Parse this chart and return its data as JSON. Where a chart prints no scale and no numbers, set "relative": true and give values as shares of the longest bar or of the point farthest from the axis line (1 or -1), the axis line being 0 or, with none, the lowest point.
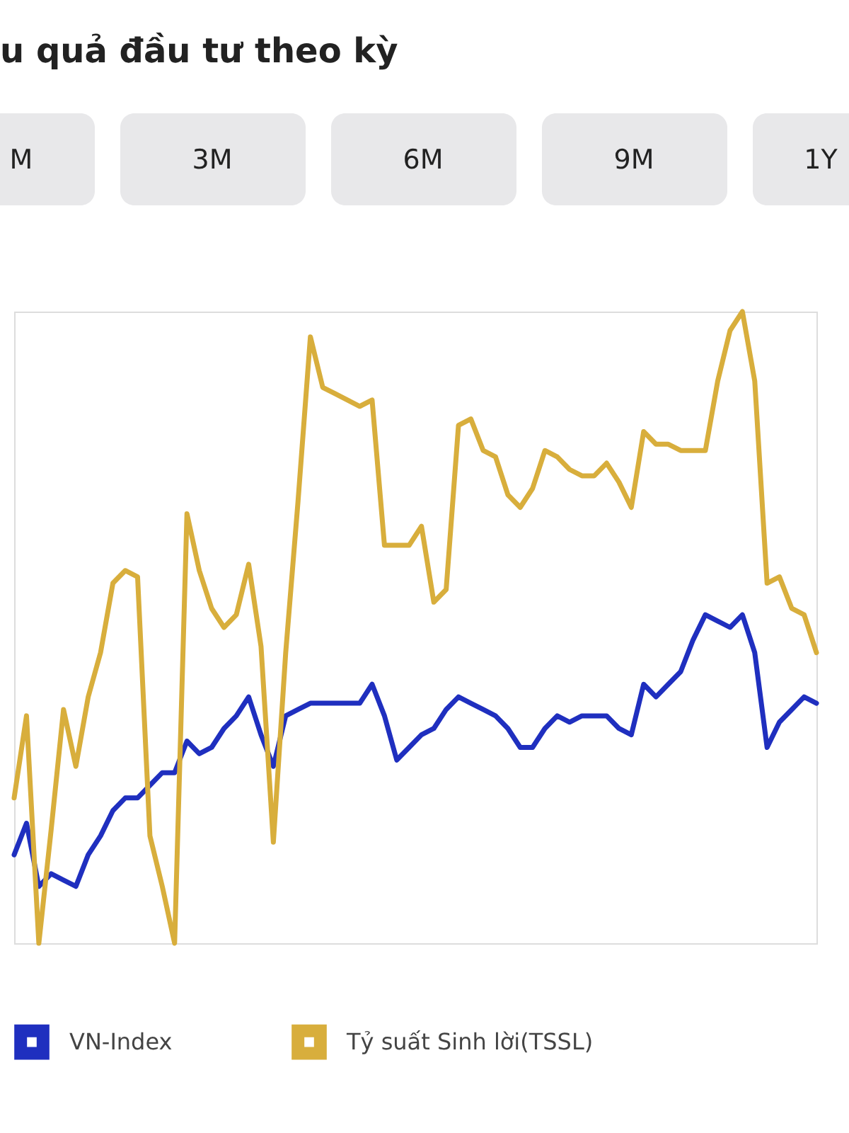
{
  "chart_data": {
    "type": "line",
    "title": "u quả đầu tư theo kỳ",
    "annotations": [
      "M",
      "3M",
      "6M",
      "9M",
      "1Y"
    ],
    "relative": true,
    "legend": "bottom",
    "marker": "none",
    "line_style": "solid",
    "categories": [
      null,
      null,
      null,
      null,
      null,
      null,
      null,
      null,
      null,
      null,
      null,
      null,
      null,
      null,
      null,
      null,
      null,
      null,
      null,
      null,
      null,
      null,
      null,
      null,
      null,
      null,
      null,
      null,
      null,
      null,
      null,
      null,
      null,
      null,
      null,
      null,
      null,
      null,
      null,
      null,
      null,
      null,
      null,
      null,
      null,
      null,
      null,
      null,
      null,
      null,
      null,
      null,
      null,
      null,
      null,
      null,
      null,
      null,
      null,
      null,
      null,
      null,
      null,
      null,
      null,
      null
    ],
    "series": [
      {
        "name": "VN-Index",
        "color": "#1f2fbf",
        "values": [
          0.14,
          0.19,
          0.09,
          0.11,
          0.1,
          0.09,
          0.14,
          0.17,
          0.21,
          0.23,
          0.23,
          0.25,
          0.27,
          0.27,
          0.32,
          0.3,
          0.31,
          0.34,
          0.36,
          0.39,
          0.33,
          0.28,
          0.36,
          0.37,
          0.38,
          0.38,
          0.38,
          0.38,
          0.38,
          0.41,
          0.36,
          0.29,
          0.31,
          0.33,
          0.34,
          0.37,
          0.39,
          0.38,
          0.37,
          0.36,
          0.34,
          0.31,
          0.31,
          0.34,
          0.36,
          0.35,
          0.36,
          0.36,
          0.36,
          0.34,
          0.33,
          0.41,
          0.39,
          0.41,
          0.43,
          0.48,
          0.52,
          0.51,
          0.5,
          0.52,
          0.46,
          0.31,
          0.35,
          0.37,
          0.39,
          0.38
        ]
      },
      {
        "name": "Tỷ suất Sinh lời(TSSL)",
        "color": "#d8ae3c",
        "values": [
          0.23,
          0.36,
          0,
          0.18,
          0.37,
          0.28,
          0.39,
          0.46,
          0.57,
          0.59,
          0.58,
          0.17,
          0.09,
          0,
          0.68,
          0.59,
          0.53,
          0.5,
          0.52,
          0.6,
          0.47,
          0.16,
          0.46,
          0.7,
          0.96,
          0.88,
          0.87,
          0.86,
          0.85,
          0.86,
          0.63,
          0.63,
          0.63,
          0.66,
          0.54,
          0.56,
          0.82,
          0.83,
          0.78,
          0.77,
          0.71,
          0.69,
          0.72,
          0.78,
          0.77,
          0.75,
          0.74,
          0.74,
          0.76,
          0.73,
          0.69,
          0.81,
          0.79,
          0.79,
          0.78,
          0.78,
          0.78,
          0.89,
          0.97,
          1,
          0.89,
          0.57,
          0.58,
          0.53,
          0.52,
          0.46
        ]
      }
    ]
  }
}
